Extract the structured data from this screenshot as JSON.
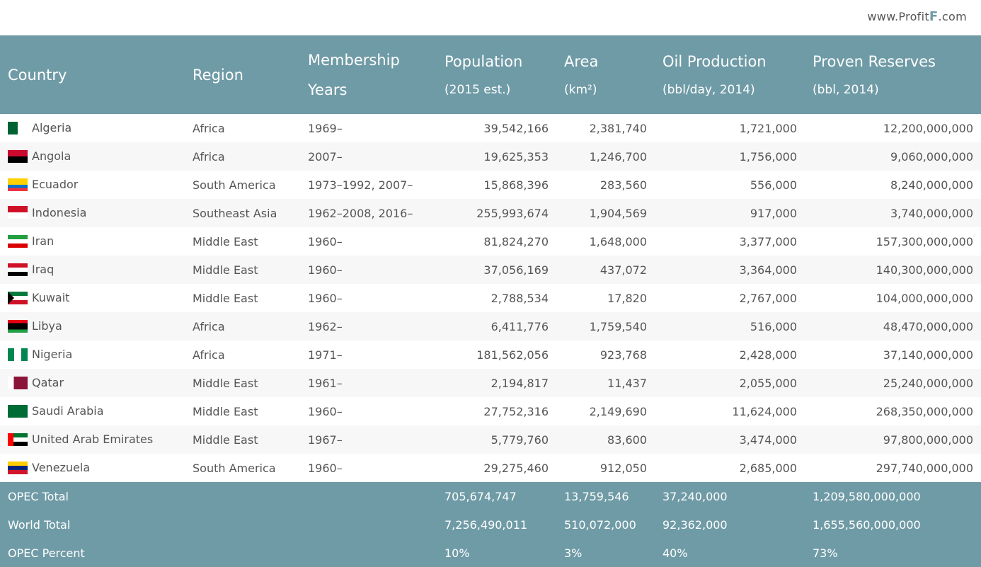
{
  "site": {
    "logo_prefix": "www.Profit",
    "logo_mark": "F",
    "logo_suffix": ".com"
  },
  "header": {
    "country": "Country",
    "region": "Region",
    "membership_line1": "Membership",
    "membership_line2": "Years",
    "population": "Population",
    "population_sub": "(2015 est.)",
    "area": "Area",
    "area_sub": "(km²)",
    "oil": "Oil Production",
    "oil_sub": "(bbl/day, 2014)",
    "reserves": "Proven Reserves",
    "reserves_sub": "(bbl, 2014)"
  },
  "rows": [
    {
      "country": "Algeria",
      "flag": "algeria-flag-icon",
      "region": "Africa",
      "years": "1969–",
      "population": "39,542,166",
      "area": "2,381,740",
      "oil": "1,721,000",
      "reserves": "12,200,000,000"
    },
    {
      "country": "Angola",
      "flag": "angola-flag-icon",
      "region": "Africa",
      "years": "2007–",
      "population": "19,625,353",
      "area": "1,246,700",
      "oil": "1,756,000",
      "reserves": "9,060,000,000"
    },
    {
      "country": "Ecuador",
      "flag": "ecuador-flag-icon",
      "region": "South America",
      "years": "1973–1992, 2007–",
      "population": "15,868,396",
      "area": "283,560",
      "oil": "556,000",
      "reserves": "8,240,000,000"
    },
    {
      "country": "Indonesia",
      "flag": "indonesia-flag-icon",
      "region": "Southeast Asia",
      "years": "1962–2008, 2016–",
      "population": "255,993,674",
      "area": "1,904,569",
      "oil": "917,000",
      "reserves": "3,740,000,000"
    },
    {
      "country": "Iran",
      "flag": "iran-flag-icon",
      "region": "Middle East",
      "years": "1960–",
      "population": "81,824,270",
      "area": "1,648,000",
      "oil": "3,377,000",
      "reserves": "157,300,000,000"
    },
    {
      "country": "Iraq",
      "flag": "iraq-flag-icon",
      "region": "Middle East",
      "years": "1960–",
      "population": "37,056,169",
      "area": "437,072",
      "oil": "3,364,000",
      "reserves": "140,300,000,000"
    },
    {
      "country": "Kuwait",
      "flag": "kuwait-flag-icon",
      "region": "Middle East",
      "years": "1960–",
      "population": "2,788,534",
      "area": "17,820",
      "oil": "2,767,000",
      "reserves": "104,000,000,000"
    },
    {
      "country": "Libya",
      "flag": "libya-flag-icon",
      "region": "Africa",
      "years": "1962–",
      "population": "6,411,776",
      "area": "1,759,540",
      "oil": "516,000",
      "reserves": "48,470,000,000"
    },
    {
      "country": "Nigeria",
      "flag": "nigeria-flag-icon",
      "region": "Africa",
      "years": "1971–",
      "population": "181,562,056",
      "area": "923,768",
      "oil": "2,428,000",
      "reserves": "37,140,000,000"
    },
    {
      "country": "Qatar",
      "flag": "qatar-flag-icon",
      "region": "Middle East",
      "years": "1961–",
      "population": "2,194,817",
      "area": "11,437",
      "oil": "2,055,000",
      "reserves": "25,240,000,000"
    },
    {
      "country": "Saudi Arabia",
      "flag": "saudi-arabia-flag-icon",
      "region": "Middle East",
      "years": "1960–",
      "population": "27,752,316",
      "area": "2,149,690",
      "oil": "11,624,000",
      "reserves": "268,350,000,000"
    },
    {
      "country": "United Arab Emirates",
      "flag": "uae-flag-icon",
      "region": "Middle East",
      "years": "1967–",
      "population": "5,779,760",
      "area": "83,600",
      "oil": "3,474,000",
      "reserves": "97,800,000,000"
    },
    {
      "country": "Venezuela",
      "flag": "venezuela-flag-icon",
      "region": "South America",
      "years": "1960–",
      "population": "29,275,460",
      "area": "912,050",
      "oil": "2,685,000",
      "reserves": "297,740,000,000"
    }
  ],
  "totals": [
    {
      "label": "OPEC Total",
      "population": "705,674,747",
      "area": "13,759,546",
      "oil": "37,240,000",
      "reserves": "1,209,580,000,000"
    },
    {
      "label": "World Total",
      "population": "7,256,490,011",
      "area": "510,072,000",
      "oil": "92,362,000",
      "reserves": "1,655,560,000,000"
    },
    {
      "label": "OPEC Percent",
      "population": "10%",
      "area": "3%",
      "oil": "40%",
      "reserves": "73%"
    }
  ],
  "colors": {
    "header_bg": "#6f9ba6",
    "row_alt": "#f7f7f7",
    "text": "#555555"
  }
}
